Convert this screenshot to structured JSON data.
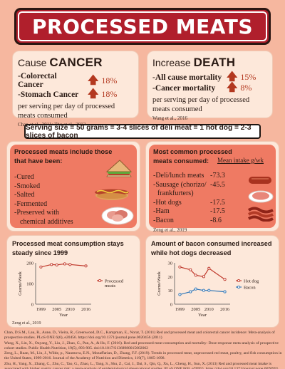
{
  "title": "PROCESSED MEATS",
  "cancer": {
    "heading_prefix": "Cause ",
    "heading_emph": "CANCER",
    "items": [
      {
        "label": "-Colorectal Cancer",
        "value": "18%"
      },
      {
        "label": "-Stomach Cancer",
        "value": "18%"
      }
    ],
    "note": "per serving per day of processed meats consumed",
    "citation": "Chan et al., 2011; Zhu et al., 2013"
  },
  "death": {
    "heading_prefix": "Increase ",
    "heading_emph": "DEATH",
    "items": [
      {
        "label": "-All cause mortality",
        "value": "15%"
      },
      {
        "label": "-Cancer mortality",
        "value": "8%"
      }
    ],
    "note": "per serving per day of processed meats consumed",
    "citation": "Wang et al., 2016"
  },
  "serving_size": "Serving size = 50 grams = 3-4 slices of deli meat = 1 hot dog = 2-3 slices of bacon",
  "includes": {
    "title": "Processed meats include those that have been:",
    "items": [
      "-Cured",
      "-Smoked",
      "-Salted",
      "-Fermented",
      "-Preserved with",
      "chemical additives"
    ]
  },
  "common": {
    "title": "Most common processed meats consumed:",
    "column_header": "Mean intake g/wk",
    "rows": [
      {
        "label": "-Deli/lunch meats",
        "value": "-73.3"
      },
      {
        "label": "-Sausage (chorizo/",
        "value": "-45.5"
      },
      {
        "label": "frankfurters)",
        "value": ""
      },
      {
        "label": "-Hot dogs",
        "value": "-17.5"
      },
      {
        "label": "-Ham",
        "value": "-17.5"
      },
      {
        "label": "-Bacon",
        "value": "-8.6"
      }
    ],
    "citation": "Zeng et al., 2019"
  },
  "colors": {
    "accent": "#b01f2c",
    "series_red": "#c0392b",
    "series_blue": "#2e75b6",
    "panel": "#fde8da",
    "salmon": "#ef7a63"
  },
  "chart_data": [
    {
      "type": "line",
      "title": "Processed meat consumption stays steady since 1999",
      "xlabel": "Year",
      "ylabel": "Grams/Week",
      "x": [
        1999,
        2003,
        2005,
        2008,
        2010,
        2016
      ],
      "xticks": [
        "1999",
        "2005",
        "2010",
        "2016"
      ],
      "yticks": [
        "0",
        "100",
        "200"
      ],
      "ylim": [
        0,
        200
      ],
      "series": [
        {
          "name": "Processed meats",
          "values": [
            180,
            192,
            190,
            195,
            192,
            185
          ]
        }
      ],
      "legend": "right",
      "citation": "Zeng et al., 2019"
    },
    {
      "type": "line",
      "title": "Amount of bacon consumed increased while hot dogs decreased",
      "xlabel": "Year",
      "ylabel": "Grams/Week",
      "x": [
        1999,
        2003,
        2005,
        2008,
        2010,
        2016
      ],
      "xticks": [
        "1999",
        "2005",
        "2010",
        "2016"
      ],
      "yticks": [
        "0",
        "10",
        "20",
        "30"
      ],
      "ylim": [
        0,
        30
      ],
      "series": [
        {
          "name": "Hot dog",
          "values": [
            27,
            25,
            21,
            20,
            26,
            18
          ]
        },
        {
          "name": "Bacon",
          "values": [
            7,
            9,
            11,
            10,
            10,
            9
          ]
        }
      ],
      "legend": "right"
    }
  ],
  "references": [
    "Chan, D.S.M., Lau, R., Aune, D., Vieira, R., Greenwood, D.C., Kampman, E., Norat, T. (2011) Red and processed meat and colorectal cancer incidence: Meta-analysis of prospective studies. PLoS ONE 6(6), e20456. https://doi.org/10.1371/journal.pone.0020456 (2011)",
    "Wang, X., Lin, X., Ouyang, Y., Liu, J., Zhao, G., Pan, A., & Hu, F. (2016). Red and processed meat consumption and mortality: Dose-response meta-analysis of prospective cohort studies. Public Health Nutrition, 19(5), 893-905. doi:10.1017/S1368980015002062",
    "Zeng, L., Ruan, M., Liu, J., Wilde, p., Naumova, E.N., Mozaffarian, D., Zhang, F.F. (2019). Trends in processed meat, unprocessed red meat, poultry, and fish consumption in the United States, 1999-2016. Journal of the Academy of Nutrition and Dietetics, 119(7), 1085-1098.",
    "Zhu, H., Yang, X., Zhang, C., Zhu, C., Tao, G., Zhao, L., Tang, S., Shu, Z., Cai, J., Dai, S., Qin, Q., Xu, L., Cheng, H., Sun, X. (2013) Red and processed meat intake is associated with higher gastric cancer risk: a meta-analysis of epidemiological observational studies. PLoS ONE 8(8), e70955. https://doi.org/10.1371/journal.pone.0070955"
  ]
}
